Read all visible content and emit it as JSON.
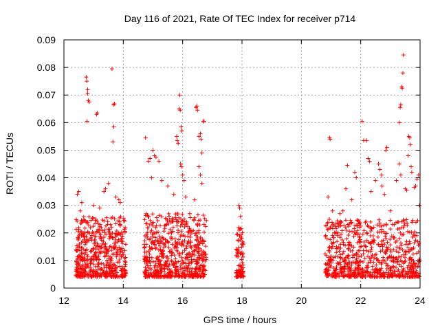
{
  "chart_data": {
    "type": "scatter",
    "title": "Day 116 of 2021, Rate Of TEC Index for receiver p714",
    "xlabel": "GPS time / hours",
    "ylabel": "ROTI / TECUs",
    "xlim": [
      12,
      24
    ],
    "ylim": [
      0,
      0.09
    ],
    "x_ticks": [
      12,
      14,
      16,
      18,
      20,
      22,
      24
    ],
    "y_ticks": [
      0,
      0.01,
      0.02,
      0.03,
      0.04,
      0.05,
      0.06,
      0.07,
      0.08,
      0.09
    ],
    "x_tick_labels": [
      "12",
      "14",
      "16",
      "18",
      "20",
      "22",
      "24"
    ],
    "y_tick_labels": [
      "0",
      "0.01",
      "0.02",
      "0.03",
      "0.04",
      "0.05",
      "0.06",
      "0.07",
      "0.08",
      "0.09"
    ],
    "grid": true,
    "marker": "+",
    "color": "#ff0000",
    "series": [
      {
        "name": "ROTI",
        "clusters": [
          {
            "x_range": [
              12.4,
              14.1
            ],
            "count": 520,
            "base_max": 0.026
          },
          {
            "x_range": [
              14.7,
              16.8
            ],
            "count": 620,
            "base_max": 0.027
          },
          {
            "x_range": [
              17.8,
              18.05
            ],
            "count": 90,
            "base_max": 0.022
          },
          {
            "x_range": [
              20.8,
              24.0
            ],
            "count": 720,
            "base_max": 0.025
          }
        ],
        "points": [
          [
            12.45,
            0.034
          ],
          [
            12.5,
            0.035
          ],
          [
            12.55,
            0.028
          ],
          [
            12.6,
            0.031
          ],
          [
            12.75,
            0.0765
          ],
          [
            12.77,
            0.075
          ],
          [
            12.8,
            0.072
          ],
          [
            12.8,
            0.0705
          ],
          [
            12.82,
            0.068
          ],
          [
            12.85,
            0.0675
          ],
          [
            12.78,
            0.0605
          ],
          [
            13.1,
            0.063
          ],
          [
            13.12,
            0.0635
          ],
          [
            13.35,
            0.035
          ],
          [
            13.4,
            0.036
          ],
          [
            13.5,
            0.038
          ],
          [
            13.62,
            0.0795
          ],
          [
            13.67,
            0.0665
          ],
          [
            13.7,
            0.0668
          ],
          [
            13.68,
            0.0585
          ],
          [
            13.65,
            0.053
          ],
          [
            13.75,
            0.033
          ],
          [
            13.85,
            0.032
          ],
          [
            13.9,
            0.031
          ],
          [
            13.0,
            0.03
          ],
          [
            13.2,
            0.029
          ],
          [
            14.75,
            0.0545
          ],
          [
            14.85,
            0.046
          ],
          [
            14.9,
            0.047
          ],
          [
            14.95,
            0.04
          ],
          [
            15.0,
            0.05
          ],
          [
            15.05,
            0.048
          ],
          [
            15.1,
            0.0475
          ],
          [
            15.2,
            0.046
          ],
          [
            15.3,
            0.039
          ],
          [
            15.5,
            0.037
          ],
          [
            15.7,
            0.034
          ],
          [
            15.8,
            0.055
          ],
          [
            15.82,
            0.0535
          ],
          [
            15.85,
            0.0525
          ],
          [
            15.9,
            0.07
          ],
          [
            15.88,
            0.065
          ],
          [
            15.92,
            0.0645
          ],
          [
            15.95,
            0.0585
          ],
          [
            15.97,
            0.057
          ],
          [
            15.93,
            0.045
          ],
          [
            15.96,
            0.044
          ],
          [
            16.0,
            0.041
          ],
          [
            16.05,
            0.039
          ],
          [
            16.1,
            0.033
          ],
          [
            16.45,
            0.0655
          ],
          [
            16.48,
            0.066
          ],
          [
            16.5,
            0.0645
          ],
          [
            16.55,
            0.055
          ],
          [
            16.6,
            0.056
          ],
          [
            16.62,
            0.054
          ],
          [
            16.65,
            0.049
          ],
          [
            16.7,
            0.0605
          ],
          [
            16.72,
            0.0605
          ],
          [
            16.55,
            0.044
          ],
          [
            16.6,
            0.041
          ],
          [
            16.65,
            0.038
          ],
          [
            16.4,
            0.032
          ],
          [
            17.9,
            0.03
          ],
          [
            17.92,
            0.029
          ],
          [
            17.95,
            0.026
          ],
          [
            20.9,
            0.033
          ],
          [
            20.95,
            0.0545
          ],
          [
            20.97,
            0.054
          ],
          [
            21.05,
            0.028
          ],
          [
            21.3,
            0.027
          ],
          [
            21.4,
            0.028
          ],
          [
            21.5,
            0.036
          ],
          [
            21.55,
            0.0445
          ],
          [
            21.7,
            0.032
          ],
          [
            21.8,
            0.042
          ],
          [
            21.85,
            0.04
          ],
          [
            22.05,
            0.0605
          ],
          [
            22.1,
            0.0535
          ],
          [
            22.2,
            0.0535
          ],
          [
            22.25,
            0.047
          ],
          [
            22.3,
            0.046
          ],
          [
            22.35,
            0.035
          ],
          [
            22.5,
            0.039
          ],
          [
            22.6,
            0.045
          ],
          [
            22.65,
            0.043
          ],
          [
            22.7,
            0.041
          ],
          [
            22.72,
            0.037
          ],
          [
            22.8,
            0.034
          ],
          [
            22.85,
            0.05
          ],
          [
            22.88,
            0.051
          ],
          [
            23.0,
            0.028
          ],
          [
            23.2,
            0.039
          ],
          [
            23.3,
            0.06
          ],
          [
            23.33,
            0.0655
          ],
          [
            23.35,
            0.0665
          ],
          [
            23.38,
            0.073
          ],
          [
            23.4,
            0.0725
          ],
          [
            23.42,
            0.078
          ],
          [
            23.44,
            0.0845
          ],
          [
            23.3,
            0.045
          ],
          [
            23.35,
            0.041
          ],
          [
            23.5,
            0.036
          ],
          [
            23.55,
            0.0355
          ],
          [
            23.62,
            0.055
          ],
          [
            23.65,
            0.0545
          ],
          [
            23.67,
            0.052
          ],
          [
            23.6,
            0.048
          ],
          [
            23.7,
            0.044
          ],
          [
            23.72,
            0.042
          ],
          [
            23.8,
            0.0365
          ],
          [
            23.85,
            0.037
          ],
          [
            23.9,
            0.0395
          ],
          [
            23.95,
            0.041
          ],
          [
            23.98,
            0.03
          ]
        ]
      }
    ]
  }
}
